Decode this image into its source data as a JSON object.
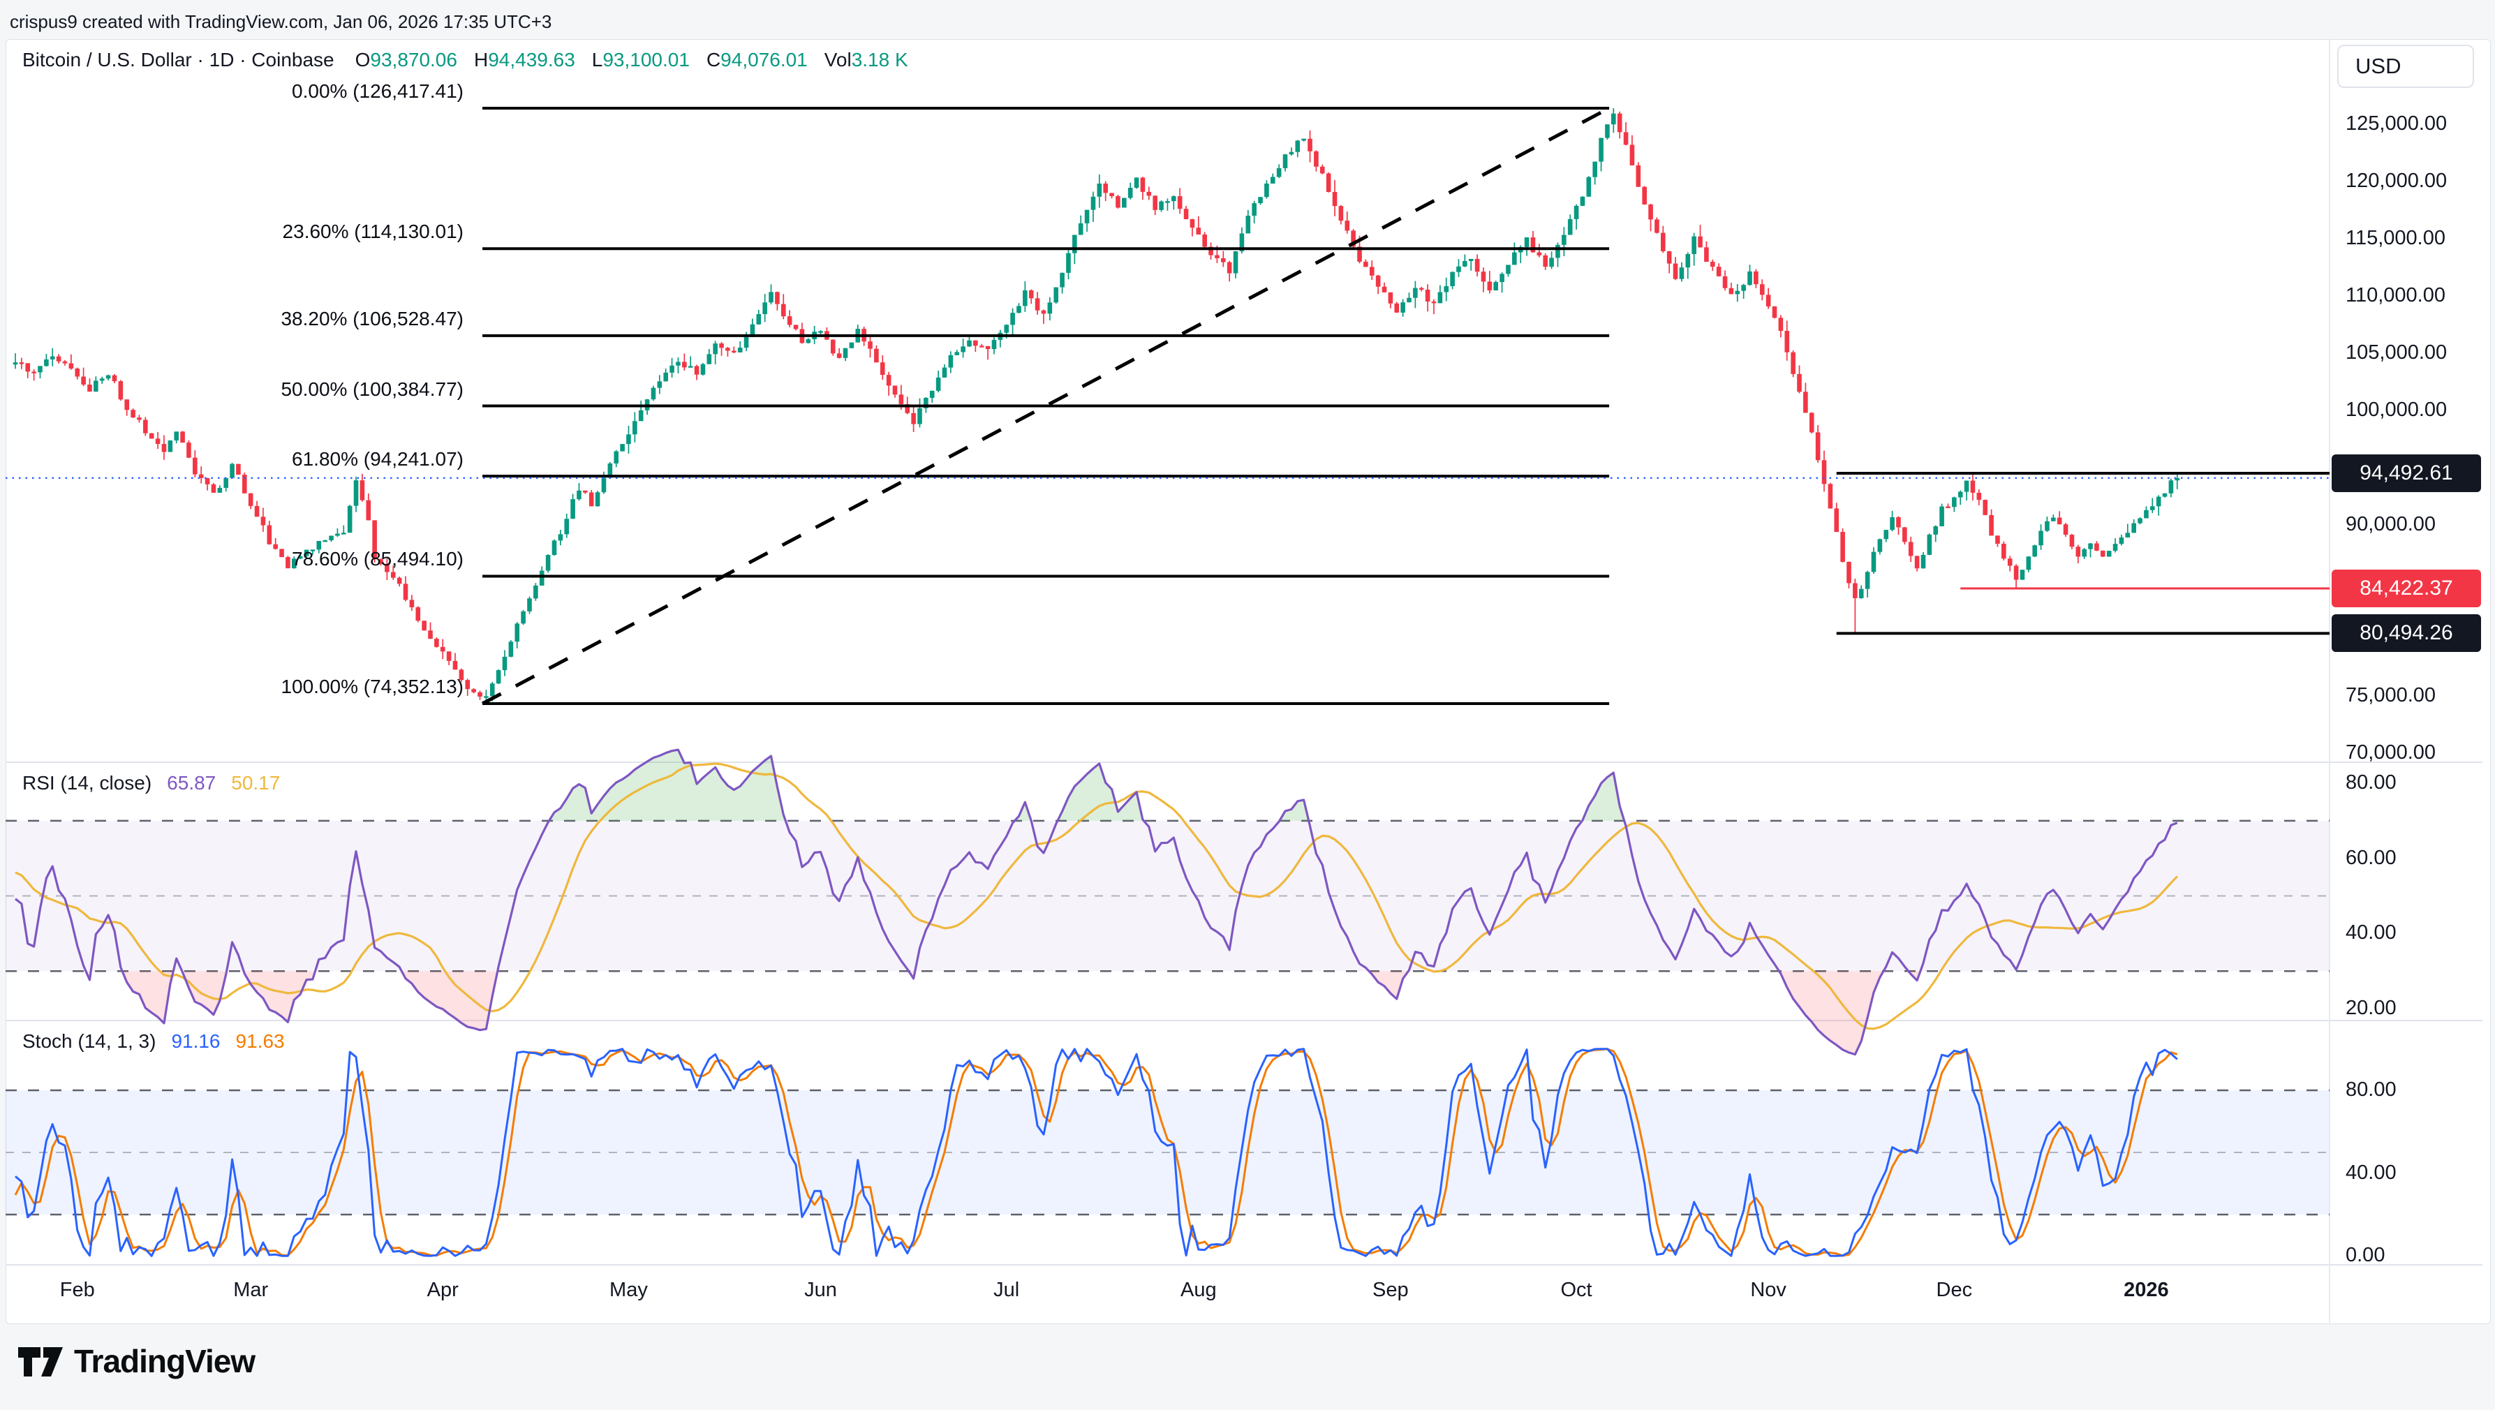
{
  "page": {
    "attribution": "crispus9 created with TradingView.com, Jan 06, 2026 17:35 UTC+3"
  },
  "symbol_bar": {
    "title": "Bitcoin / U.S. Dollar · 1D · Coinbase",
    "ohlc": [
      {
        "label": "O",
        "value": "93,870.06"
      },
      {
        "label": "H",
        "value": "94,439.63"
      },
      {
        "label": "L",
        "value": "93,100.01"
      },
      {
        "label": "C",
        "value": "94,076.01"
      },
      {
        "label": "Vol",
        "value": "3.18 K"
      }
    ],
    "value_color": "#089981"
  },
  "price_axis": {
    "currency_button": "USD",
    "ticks": [
      {
        "label": "125,000.00",
        "price": 125000
      },
      {
        "label": "120,000.00",
        "price": 120000
      },
      {
        "label": "115,000.00",
        "price": 115000
      },
      {
        "label": "110,000.00",
        "price": 110000
      },
      {
        "label": "105,000.00",
        "price": 105000
      },
      {
        "label": "100,000.00",
        "price": 100000
      },
      {
        "label": "95,000.00",
        "price": 95000
      },
      {
        "label": "90,000.00",
        "price": 90000
      },
      {
        "label": "85,000.00",
        "price": 85000
      },
      {
        "label": "80,000.00",
        "price": 80000
      },
      {
        "label": "75,000.00",
        "price": 75000
      },
      {
        "label": "70,000.00",
        "price": 70000
      }
    ],
    "badges": [
      {
        "label": "94,492.61",
        "price": 94492.61,
        "bg": "#131722"
      },
      {
        "label": "84,422.37",
        "price": 84422.37,
        "bg": "#F23645"
      },
      {
        "label": "80,494.26",
        "price": 80494.26,
        "bg": "#131722"
      }
    ]
  },
  "rsi_pane": {
    "legend_title": "RSI (14, close)",
    "value_main": "65.87",
    "value_ma": "50.17",
    "ticks": [
      {
        "label": "80.00",
        "value": 80
      },
      {
        "label": "60.00",
        "value": 60
      },
      {
        "label": "40.00",
        "value": 40
      },
      {
        "label": "20.00",
        "value": 20
      }
    ],
    "levels": {
      "upper": 70,
      "middle": 50,
      "lower": 30
    }
  },
  "stoch_pane": {
    "legend_title": "Stoch (14, 1, 3)",
    "value_k": "91.16",
    "value_d": "91.63",
    "ticks": [
      {
        "label": "80.00",
        "value": 80
      },
      {
        "label": "40.00",
        "value": 40
      },
      {
        "label": "0.00",
        "value": 0
      }
    ],
    "levels": {
      "upper": 80,
      "middle": 50,
      "lower": 20
    }
  },
  "time_axis": {
    "labels": [
      {
        "text": "Feb",
        "day": 10
      },
      {
        "text": "Mar",
        "day": 38
      },
      {
        "text": "Apr",
        "day": 69
      },
      {
        "text": "May",
        "day": 99
      },
      {
        "text": "Jun",
        "day": 130
      },
      {
        "text": "Jul",
        "day": 160
      },
      {
        "text": "Aug",
        "day": 191
      },
      {
        "text": "Sep",
        "day": 222
      },
      {
        "text": "Oct",
        "day": 252
      },
      {
        "text": "Nov",
        "day": 283
      },
      {
        "text": "Dec",
        "day": 313
      },
      {
        "text": "2026",
        "day": 344,
        "bold": true
      }
    ]
  },
  "logo": {
    "text": "TradingView"
  },
  "colors": {
    "up": "#089981",
    "down": "#F23645",
    "rsi": "#7E57C2",
    "rsi_ma": "#EFB83C",
    "rsi_band": "#7E57C2",
    "stoch_k": "#2962FF",
    "stoch_d": "#F57C00",
    "stoch_band": "#2962FF",
    "last_price": "#2962FF",
    "overbought_fill": "#4caf50",
    "oversold_fill": "#f23645"
  },
  "chart_data": {
    "type": "candlestick",
    "title": "Bitcoin / U.S. Dollar, 1D, Coinbase",
    "visible_price_range": [
      70000,
      127500
    ],
    "grid": false,
    "num_candles": 350,
    "first_candle_date": "Jan 22",
    "last_candle_date": "Jan 06, 2026",
    "last_candle_ohlc": {
      "open": 93870.06,
      "high": 94439.63,
      "low": 93100.01,
      "close": 94076.01,
      "volume": "3.18 K"
    },
    "price_keyframes": [
      [
        -40,
        103500
      ],
      [
        -30,
        104200
      ],
      [
        -20,
        103800
      ],
      [
        -14,
        104500
      ],
      [
        -8,
        105200
      ],
      [
        -4,
        104200
      ],
      [
        0,
        104300
      ],
      [
        3,
        103200
      ],
      [
        6,
        104800
      ],
      [
        9,
        103600
      ],
      [
        12,
        101900
      ],
      [
        15,
        103200
      ],
      [
        18,
        100300
      ],
      [
        21,
        98200
      ],
      [
        24,
        96400
      ],
      [
        26,
        98000
      ],
      [
        29,
        94600
      ],
      [
        32,
        92600
      ],
      [
        35,
        95200
      ],
      [
        38,
        91800
      ],
      [
        41,
        88600
      ],
      [
        44,
        86300
      ],
      [
        47,
        87800
      ],
      [
        50,
        88500
      ],
      [
        53,
        89600
      ],
      [
        55,
        94100
      ],
      [
        57,
        90500
      ],
      [
        58,
        87200
      ],
      [
        60,
        85600
      ],
      [
        62,
        84800
      ],
      [
        64,
        82600
      ],
      [
        67,
        80200
      ],
      [
        70,
        77900
      ],
      [
        73,
        75900
      ],
      [
        76,
        74900
      ],
      [
        79,
        78400
      ],
      [
        82,
        82400
      ],
      [
        85,
        86200
      ],
      [
        88,
        89400
      ],
      [
        91,
        93200
      ],
      [
        93,
        91900
      ],
      [
        96,
        95200
      ],
      [
        98,
        97100
      ],
      [
        101,
        99900
      ],
      [
        104,
        102600
      ],
      [
        107,
        104300
      ],
      [
        110,
        103300
      ],
      [
        113,
        105900
      ],
      [
        116,
        104900
      ],
      [
        119,
        107300
      ],
      [
        122,
        110400
      ],
      [
        124,
        108300
      ],
      [
        127,
        106100
      ],
      [
        130,
        106900
      ],
      [
        133,
        104400
      ],
      [
        136,
        107100
      ],
      [
        139,
        104100
      ],
      [
        142,
        101300
      ],
      [
        145,
        98900
      ],
      [
        148,
        101900
      ],
      [
        151,
        104600
      ],
      [
        154,
        106300
      ],
      [
        157,
        105100
      ],
      [
        160,
        107600
      ],
      [
        163,
        110300
      ],
      [
        166,
        108400
      ],
      [
        169,
        112300
      ],
      [
        172,
        116600
      ],
      [
        175,
        119600
      ],
      [
        178,
        117900
      ],
      [
        181,
        120300
      ],
      [
        184,
        117600
      ],
      [
        187,
        118900
      ],
      [
        190,
        115900
      ],
      [
        193,
        113600
      ],
      [
        196,
        112300
      ],
      [
        199,
        116900
      ],
      [
        202,
        119600
      ],
      [
        205,
        122100
      ],
      [
        208,
        123900
      ],
      [
        211,
        120400
      ],
      [
        214,
        116900
      ],
      [
        217,
        113300
      ],
      [
        220,
        110900
      ],
      [
        223,
        108400
      ],
      [
        226,
        110900
      ],
      [
        229,
        109100
      ],
      [
        232,
        111900
      ],
      [
        235,
        113300
      ],
      [
        238,
        110300
      ],
      [
        241,
        112900
      ],
      [
        244,
        114900
      ],
      [
        247,
        112400
      ],
      [
        250,
        115300
      ],
      [
        253,
        118900
      ],
      [
        256,
        123600
      ],
      [
        258,
        126100
      ],
      [
        260,
        123100
      ],
      [
        262,
        119600
      ],
      [
        264,
        116900
      ],
      [
        266,
        113900
      ],
      [
        268,
        111600
      ],
      [
        271,
        114900
      ],
      [
        274,
        112400
      ],
      [
        277,
        109900
      ],
      [
        280,
        111900
      ],
      [
        283,
        109400
      ],
      [
        285,
        106900
      ],
      [
        287,
        103300
      ],
      [
        289,
        99700
      ],
      [
        291,
        95900
      ],
      [
        293,
        91300
      ],
      [
        295,
        86900
      ],
      [
        297,
        83300
      ],
      [
        299,
        85900
      ],
      [
        301,
        88700
      ],
      [
        303,
        90900
      ],
      [
        305,
        88400
      ],
      [
        307,
        85900
      ],
      [
        309,
        88900
      ],
      [
        311,
        91300
      ],
      [
        313,
        92400
      ],
      [
        315,
        93900
      ],
      [
        317,
        91900
      ],
      [
        319,
        89300
      ],
      [
        321,
        87300
      ],
      [
        323,
        85400
      ],
      [
        325,
        86900
      ],
      [
        327,
        89300
      ],
      [
        329,
        90700
      ],
      [
        331,
        88900
      ],
      [
        333,
        87300
      ],
      [
        335,
        88100
      ],
      [
        337,
        87400
      ],
      [
        339,
        88400
      ],
      [
        341,
        89400
      ],
      [
        343,
        90400
      ],
      [
        345,
        91600
      ],
      [
        347,
        92900
      ],
      [
        349,
        94076
      ]
    ],
    "special_candles": [
      {
        "index": 76,
        "low": 74352.13
      },
      {
        "index": 258,
        "high": 126417.41
      },
      {
        "index": 297,
        "low": 80494.26
      },
      {
        "index": 323,
        "low": 84422.37
      },
      {
        "index": 349,
        "open": 93870.06,
        "high": 94439.63,
        "low": 93100.01,
        "close": 94076.01
      }
    ],
    "fibonacci": {
      "day_start": 75.4,
      "day_end": 257.3,
      "levels": [
        {
          "label": "0.00% (126,417.41)",
          "price": 126417.41
        },
        {
          "label": "23.60% (114,130.01)",
          "price": 114130.01
        },
        {
          "label": "38.20% (106,528.47)",
          "price": 106528.47
        },
        {
          "label": "50.00% (100,384.77)",
          "price": 100384.77
        },
        {
          "label": "61.80% (94,241.07)",
          "price": 94241.07
        },
        {
          "label": "78.60% (85,494.10)",
          "price": 85494.1
        },
        {
          "label": "100.00% (74,352.13)",
          "price": 74352.13
        }
      ]
    },
    "trend_line": {
      "from": {
        "day": 75.4,
        "price": 74352.13
      },
      "to": {
        "day": 257.3,
        "price": 126417.41
      },
      "style": "dashed"
    },
    "horizontal_lines": [
      {
        "price": 94492.61,
        "day_start": 294,
        "color": "#000000",
        "width": 4
      },
      {
        "price": 84422.37,
        "day_start": 314,
        "color": "#F23645",
        "width": 3
      },
      {
        "price": 80494.26,
        "day_start": 294,
        "color": "#000000",
        "width": 4
      }
    ],
    "last_price_line": {
      "price": 94076.01
    },
    "rsi": {
      "period": 14,
      "source": "close",
      "ma_period": 14,
      "current": 65.87,
      "current_ma": 50.17,
      "scale": [
        20,
        80
      ]
    },
    "stoch": {
      "k": 14,
      "smooth": 1,
      "d": 3,
      "current_k": 91.16,
      "current_d": 91.63,
      "scale": [
        0,
        80
      ]
    }
  }
}
